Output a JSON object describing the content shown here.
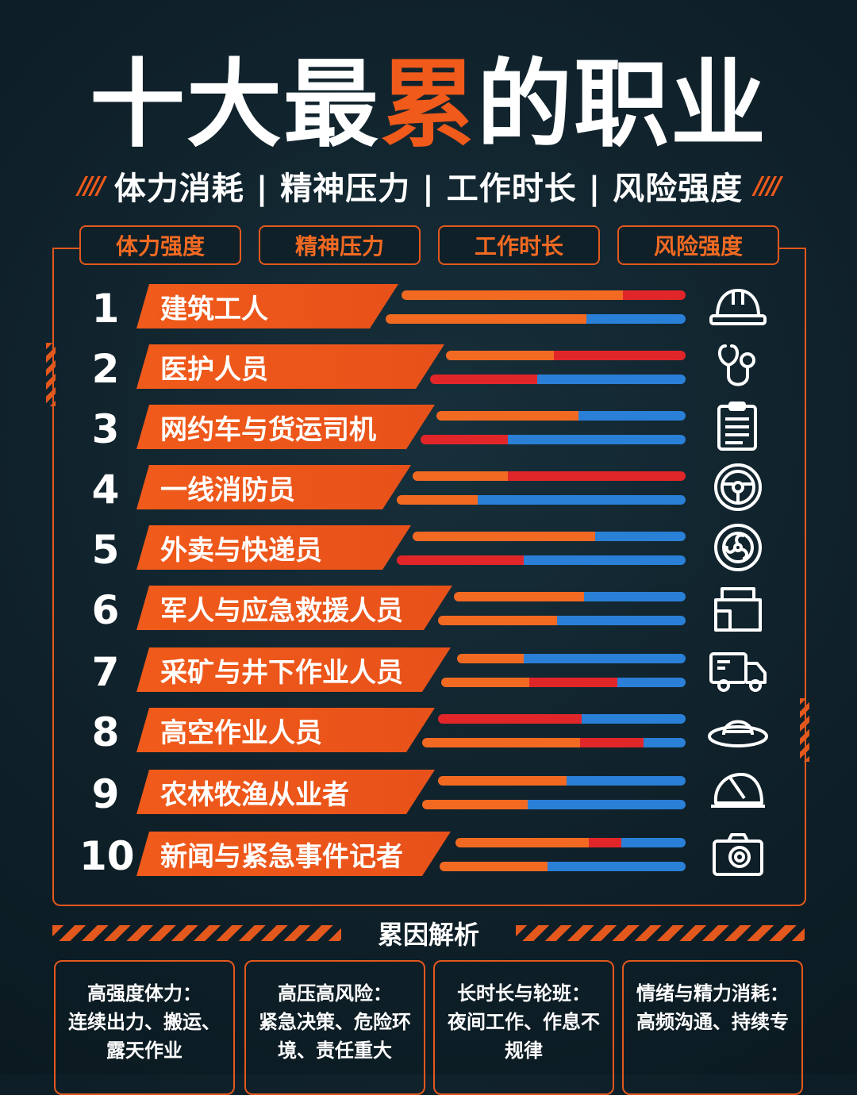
{
  "title": {
    "part1": "十大最",
    "highlight": "累",
    "part2": "的职业"
  },
  "subtitle": "体力消耗 | 精神压力 | 工作时长 | 风险强度",
  "columns": [
    "体力强度",
    "精神压力",
    "工作时长",
    "风险强度"
  ],
  "colors": {
    "accent": "#f05a1a",
    "red": "#e1262a",
    "blue": "#2a7fd6",
    "background": "#0f2029"
  },
  "rows": [
    {
      "rank": "1",
      "name": "建筑工人",
      "icon": "hard-hat-icon"
    },
    {
      "rank": "2",
      "name": "医护人员",
      "icon": "stethoscope-icon"
    },
    {
      "rank": "3",
      "name": "网约车与货运司机",
      "icon": "clipboard-icon"
    },
    {
      "rank": "4",
      "name": "一线消防员",
      "icon": "steering-wheel-icon"
    },
    {
      "rank": "5",
      "name": "外卖与快递员",
      "icon": "fan-icon"
    },
    {
      "rank": "6",
      "name": "军人与应急救援人员",
      "icon": "box-icon"
    },
    {
      "rank": "7",
      "name": "采矿与井下作业人员",
      "icon": "truck-icon"
    },
    {
      "rank": "8",
      "name": "高空作业人员",
      "icon": "sun-hat-icon"
    },
    {
      "rank": "9",
      "name": "农林牧渔从业者",
      "icon": "helmet-icon"
    },
    {
      "rank": "10",
      "name": "新闻与紧急事件记者",
      "icon": "camera-icon"
    }
  ],
  "analysis": {
    "title": "累因解析",
    "cards": [
      {
        "heading": "高强度体力：",
        "body": "连续出力、搬运、露天作业"
      },
      {
        "heading": "高压高风险：",
        "body": "紧急决策、危险环境、责任重大"
      },
      {
        "heading": "长时长与轮班：",
        "body": "夜间工作、作息不规律"
      },
      {
        "heading": "情绪与精力消耗：",
        "body": "高频沟通、持续专"
      }
    ]
  }
}
